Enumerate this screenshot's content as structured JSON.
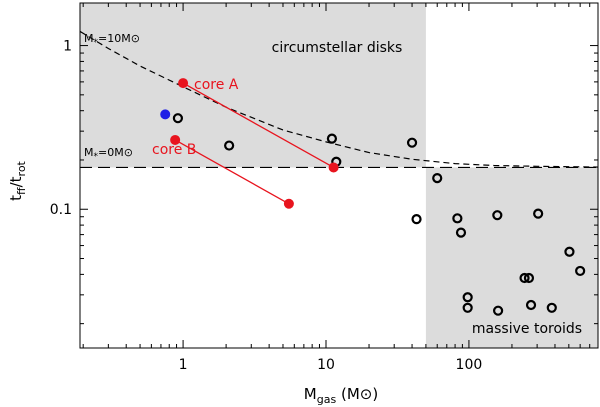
{
  "chart_data": {
    "type": "scatter",
    "title": "",
    "xlabel": {
      "base": "M",
      "sub": "gas",
      "unit": "(M",
      "unit_close": ")"
    },
    "ylabel": {
      "a": "t",
      "a_sub": "ff",
      "slash": "/t",
      "b_sub": "rot"
    },
    "x_scale": "log",
    "y_scale": "log",
    "xlim": [
      0.19,
      800
    ],
    "ylim": [
      0.0142,
      1.82
    ],
    "x_tick_labels": [
      {
        "value": 1,
        "label": "1"
      },
      {
        "value": 10,
        "label": "10"
      },
      {
        "value": 100,
        "label": "100"
      }
    ],
    "y_tick_labels": [
      {
        "value": 0.1,
        "label": "0.1"
      },
      {
        "value": 1,
        "label": "1"
      }
    ],
    "regions": [
      {
        "name": "circumstellar disks",
        "label": "circumstellar disks",
        "x_range": [
          0.19,
          50
        ],
        "y_range": [
          0.18,
          1.82
        ],
        "color": "#dcdcdc"
      },
      {
        "name": "massive toroids",
        "label": "massive toroids",
        "x_range": [
          50,
          800
        ],
        "y_range": [
          0.0142,
          0.18
        ],
        "color": "#dcdcdc"
      }
    ],
    "reference_curves": [
      {
        "name": "M*=10Msun",
        "label_main": "M",
        "label_sub": "*",
        "label_rest": "=10M",
        "style": "dashed",
        "x": [
          0.19,
          0.3,
          0.5,
          1,
          2,
          5,
          10,
          20,
          40,
          80,
          150,
          300,
          800
        ],
        "y": [
          1.22,
          0.96,
          0.75,
          0.56,
          0.42,
          0.305,
          0.258,
          0.222,
          0.202,
          0.19,
          0.185,
          0.183,
          0.181
        ]
      },
      {
        "name": "M*=0Msun",
        "label_main": "M",
        "label_sub": "*",
        "label_rest": "=0M",
        "style": "long-dashed",
        "x": [
          0.19,
          800
        ],
        "y": [
          0.18,
          0.18
        ]
      }
    ],
    "series": [
      {
        "name": "sources",
        "marker": "open-circle",
        "color": "#000000",
        "points": [
          [
            0.92,
            0.36
          ],
          [
            2.1,
            0.245
          ],
          [
            11,
            0.27
          ],
          [
            11.8,
            0.195
          ],
          [
            40,
            0.255
          ],
          [
            43,
            0.087
          ],
          [
            60,
            0.155
          ],
          [
            83,
            0.088
          ],
          [
            88,
            0.072
          ],
          [
            98,
            0.029
          ],
          [
            98,
            0.025
          ],
          [
            158,
            0.092
          ],
          [
            160,
            0.024
          ],
          [
            245,
            0.038
          ],
          [
            263,
            0.038
          ],
          [
            272,
            0.026
          ],
          [
            305,
            0.094
          ],
          [
            380,
            0.025
          ],
          [
            505,
            0.055
          ],
          [
            600,
            0.042
          ]
        ]
      },
      {
        "name": "blue source",
        "marker": "filled-circle",
        "color": "#1f1fe6",
        "points": [
          [
            0.75,
            0.38
          ]
        ]
      },
      {
        "name": "core A",
        "label": "core A",
        "marker": "filled-circle",
        "color": "#e8141e",
        "connected": true,
        "points": [
          [
            1.0,
            0.59
          ],
          [
            11.3,
            0.18
          ]
        ]
      },
      {
        "name": "core B",
        "label": "core B",
        "marker": "filled-circle",
        "color": "#e8141e",
        "connected": true,
        "points": [
          [
            0.88,
            0.265
          ],
          [
            5.5,
            0.108
          ]
        ]
      }
    ],
    "text": {
      "curve_label_sun": "⊙",
      "core_a": "core A",
      "core_b": "core B"
    }
  }
}
